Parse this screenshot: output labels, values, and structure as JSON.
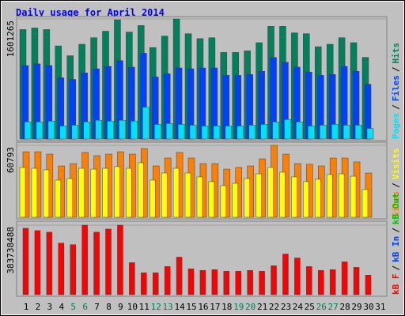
{
  "title": "Daily usage for April 2014",
  "legend_separator": "/",
  "chart_data": [
    {
      "type": "bar",
      "ylim": [
        0,
        1601265
      ],
      "yticks": [
        1601265
      ],
      "series": [
        {
          "name": "Hits",
          "color": "#00805c",
          "values": [
            1460000,
            1481000,
            1460000,
            1242000,
            1111000,
            1264000,
            1351000,
            1438000,
            1590000,
            1427000,
            1514000,
            1220000,
            1373000,
            1601265,
            1405000,
            1340000,
            1351000,
            1155000,
            1155000,
            1176000,
            1285000,
            1503000,
            1503000,
            1416000,
            1405000,
            1231000,
            1264000,
            1351000,
            1285000,
            1089000,
            null
          ]
        },
        {
          "name": "Files",
          "color": "#0040ff",
          "values": [
            980000,
            1002000,
            980000,
            817000,
            795000,
            882000,
            937000,
            969000,
            1046000,
            959000,
            1144000,
            828000,
            871000,
            948000,
            937000,
            948000,
            948000,
            850000,
            850000,
            861000,
            904000,
            1089000,
            1024000,
            959000,
            893000,
            850000,
            861000,
            969000,
            904000,
            730000,
            null
          ]
        },
        {
          "name": "Pages",
          "color": "#00e0ff",
          "values": [
            229000,
            229000,
            240000,
            174000,
            185000,
            229000,
            251000,
            240000,
            251000,
            240000,
            425000,
            196000,
            207000,
            196000,
            185000,
            174000,
            174000,
            174000,
            174000,
            185000,
            196000,
            229000,
            261000,
            229000,
            174000,
            185000,
            196000,
            185000,
            185000,
            142000,
            null
          ]
        }
      ]
    },
    {
      "type": "bar",
      "ylim": [
        0,
        60793
      ],
      "yticks": [
        60793
      ],
      "series": [
        {
          "name": "Sites",
          "color": "#ff8000",
          "values": [
            55400,
            55400,
            53400,
            43400,
            45400,
            54800,
            52100,
            53400,
            55400,
            53400,
            58100,
            43400,
            50100,
            54800,
            50100,
            45400,
            45400,
            40700,
            42100,
            43400,
            49400,
            60793,
            53400,
            45400,
            44800,
            43400,
            50100,
            50100,
            46800,
            37400,
            null
          ]
        },
        {
          "name": "Visits",
          "color": "#ffff00",
          "values": [
            42100,
            41400,
            40100,
            31400,
            32700,
            41400,
            40700,
            41400,
            42800,
            41400,
            46100,
            31400,
            37400,
            41400,
            37400,
            34100,
            30100,
            26700,
            28700,
            32700,
            36700,
            42100,
            38100,
            34100,
            30100,
            32100,
            36100,
            36700,
            34700,
            23400,
            null
          ]
        }
      ]
    },
    {
      "type": "bar",
      "ylim": [
        0,
        383738488
      ],
      "yticks": [
        383738488
      ],
      "categories": [
        "1",
        "2",
        "3",
        "4",
        "5",
        "6",
        "7",
        "8",
        "9",
        "10",
        "11",
        "12",
        "13",
        "14",
        "15",
        "16",
        "17",
        "18",
        "19",
        "20",
        "21",
        "22",
        "23",
        "24",
        "25",
        "26",
        "27",
        "28",
        "29",
        "30",
        "31"
      ],
      "category_colors": [
        "#000000",
        "#000000",
        "#000000",
        "#000000",
        "#00805c",
        "#00805c",
        "#000000",
        "#000000",
        "#000000",
        "#000000",
        "#000000",
        "#00805c",
        "#00805c",
        "#000000",
        "#000000",
        "#000000",
        "#000000",
        "#000000",
        "#00805c",
        "#00805c",
        "#000000",
        "#000000",
        "#000000",
        "#000000",
        "#000000",
        "#00805c",
        "#00805c",
        "#000000",
        "#000000",
        "#000000",
        "#000000"
      ],
      "series": [
        {
          "name": "kB F",
          "color": "#ff0000",
          "values": [
            366500000,
            353600000,
            344900000,
            284600000,
            275900000,
            383738488,
            344900000,
            362200000,
            383738488,
            176800000,
            120700000,
            120700000,
            155200000,
            207000000,
            142300000,
            133700000,
            138000000,
            129300000,
            129300000,
            133700000,
            129300000,
            159500000,
            224200000,
            202600000,
            155200000,
            133700000,
            138000000,
            181100000,
            150900000,
            107800000,
            null
          ]
        },
        {
          "name": "kB In",
          "color": "#0040ff",
          "values": [
            0,
            0,
            0,
            0,
            0,
            0,
            0,
            0,
            0,
            0,
            0,
            0,
            0,
            0,
            0,
            0,
            0,
            0,
            0,
            0,
            0,
            0,
            0,
            0,
            0,
            0,
            0,
            0,
            0,
            0,
            null
          ]
        },
        {
          "name": "kB Out",
          "color": "#00c000",
          "values": [
            0,
            0,
            0,
            0,
            0,
            0,
            0,
            0,
            0,
            0,
            0,
            0,
            0,
            0,
            0,
            0,
            0,
            0,
            0,
            0,
            0,
            0,
            0,
            0,
            0,
            0,
            0,
            0,
            0,
            0,
            null
          ]
        }
      ]
    }
  ]
}
